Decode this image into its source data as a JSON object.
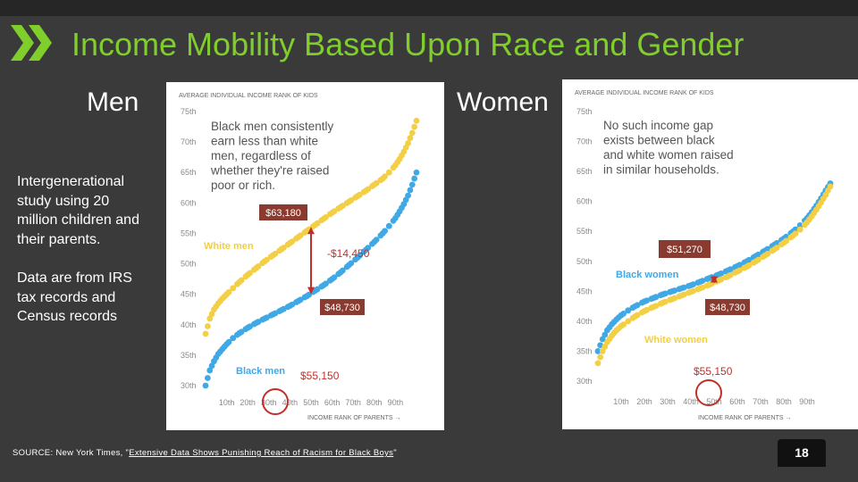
{
  "slide": {
    "title": "Income Mobility Based Upon Race and Gender",
    "men_label": "Men",
    "women_label": "Women",
    "intro_text": "Intergenerational study using 20 million children and their parents.",
    "data_text": "Data are from IRS tax records and Census records",
    "source_prefix": "SOURCE: New York Times, \"",
    "source_link": "Extensive Data Shows Punishing Reach of Racism for Black Boys",
    "source_suffix": "\"",
    "slide_number": "18"
  },
  "colors": {
    "background": "#3a3a3a",
    "title": "#7fce2c",
    "yellow_series": "#f2cf45",
    "blue_series": "#3fa9e6",
    "annotation": "#c0302a",
    "value_box": "#8a3b2f",
    "panel": "#ffffff"
  },
  "chart_data": [
    {
      "type": "scatter",
      "title": "Men",
      "y_header": "AVERAGE INDIVIDUAL INCOME RANK OF KIDS",
      "x_header": "INCOME RANK OF PARENTS →",
      "y_ticks": [
        "30th",
        "35th",
        "40th",
        "45th",
        "50th",
        "55th",
        "60th",
        "65th",
        "70th",
        "75th"
      ],
      "x_ticks": [
        "10th",
        "20th",
        "30th",
        "40th",
        "50th",
        "60th",
        "70th",
        "80th",
        "90th"
      ],
      "ylim": [
        30,
        75
      ],
      "xlim": [
        0,
        100
      ],
      "note": "Black men consistently earn less than white men, regardless of whether they're raised poor or rich.",
      "series": [
        {
          "name": "White men",
          "color": "#f2cf45",
          "points": [
            [
              0,
              38.5
            ],
            [
              2,
              41
            ],
            [
              4,
              42.5
            ],
            [
              6,
              43.5
            ],
            [
              8,
              44.3
            ],
            [
              10,
              45
            ],
            [
              13,
              46
            ],
            [
              16,
              47
            ],
            [
              20,
              48.2
            ],
            [
              24,
              49.3
            ],
            [
              28,
              50.4
            ],
            [
              32,
              51.4
            ],
            [
              36,
              52.4
            ],
            [
              40,
              53.4
            ],
            [
              44,
              54.4
            ],
            [
              48,
              55.4
            ],
            [
              52,
              56.4
            ],
            [
              56,
              57.4
            ],
            [
              60,
              58.4
            ],
            [
              64,
              59.3
            ],
            [
              68,
              60.2
            ],
            [
              72,
              61.1
            ],
            [
              76,
              62
            ],
            [
              80,
              63
            ],
            [
              84,
              64
            ],
            [
              87,
              65
            ],
            [
              90,
              66.2
            ],
            [
              92,
              67.2
            ],
            [
              94,
              68.4
            ],
            [
              96,
              69.8
            ],
            [
              98,
              71.5
            ],
            [
              100,
              73.5
            ]
          ]
        },
        {
          "name": "Black men",
          "color": "#3fa9e6",
          "points": [
            [
              0,
              30
            ],
            [
              2,
              32.5
            ],
            [
              4,
              34
            ],
            [
              6,
              35.2
            ],
            [
              8,
              36
            ],
            [
              10,
              36.8
            ],
            [
              13,
              37.8
            ],
            [
              16,
              38.6
            ],
            [
              20,
              39.5
            ],
            [
              24,
              40.3
            ],
            [
              28,
              41
            ],
            [
              32,
              41.7
            ],
            [
              36,
              42.4
            ],
            [
              40,
              43.1
            ],
            [
              44,
              43.9
            ],
            [
              48,
              44.7
            ],
            [
              52,
              45.6
            ],
            [
              56,
              46.5
            ],
            [
              60,
              47.5
            ],
            [
              64,
              48.6
            ],
            [
              68,
              49.8
            ],
            [
              72,
              51
            ],
            [
              76,
              52.3
            ],
            [
              80,
              53.6
            ],
            [
              84,
              55
            ],
            [
              87,
              56.2
            ],
            [
              90,
              57.5
            ],
            [
              92,
              58.6
            ],
            [
              94,
              59.8
            ],
            [
              96,
              61.2
            ],
            [
              98,
              63
            ],
            [
              100,
              65
            ]
          ]
        }
      ],
      "annotations": {
        "upper_value": "$63,180",
        "gap_value": "-$14,450",
        "lower_value": "$48,730",
        "circle_value": "$55,150",
        "gap_at_parent_rank": 50
      }
    },
    {
      "type": "scatter",
      "title": "Women",
      "y_header": "AVERAGE INDIVIDUAL INCOME RANK OF KIDS",
      "x_header": "INCOME RANK OF PARENTS →",
      "y_ticks": [
        "30th",
        "35th",
        "40th",
        "45th",
        "50th",
        "55th",
        "60th",
        "65th",
        "70th",
        "75th"
      ],
      "x_ticks": [
        "10th",
        "20th",
        "30th",
        "40th",
        "50th",
        "60th",
        "70th",
        "80th",
        "90th"
      ],
      "ylim": [
        30,
        75
      ],
      "xlim": [
        0,
        100
      ],
      "note": "No such income gap exists between black and white women raised in similar households.",
      "series": [
        {
          "name": "Black women",
          "color": "#3fa9e6",
          "points": [
            [
              0,
              35
            ],
            [
              2,
              37
            ],
            [
              4,
              38.5
            ],
            [
              6,
              39.5
            ],
            [
              8,
              40.3
            ],
            [
              10,
              41
            ],
            [
              13,
              41.8
            ],
            [
              16,
              42.5
            ],
            [
              20,
              43.3
            ],
            [
              24,
              43.9
            ],
            [
              28,
              44.5
            ],
            [
              32,
              45
            ],
            [
              36,
              45.5
            ],
            [
              40,
              46
            ],
            [
              44,
              46.6
            ],
            [
              48,
              47.2
            ],
            [
              52,
              47.8
            ],
            [
              56,
              48.5
            ],
            [
              60,
              49.2
            ],
            [
              64,
              50
            ],
            [
              68,
              50.9
            ],
            [
              72,
              51.8
            ],
            [
              76,
              52.8
            ],
            [
              80,
              53.8
            ],
            [
              84,
              55
            ],
            [
              87,
              56
            ],
            [
              90,
              57.2
            ],
            [
              92,
              58.2
            ],
            [
              94,
              59.3
            ],
            [
              96,
              60.5
            ],
            [
              98,
              61.8
            ],
            [
              100,
              63
            ]
          ]
        },
        {
          "name": "White women",
          "color": "#f2cf45",
          "points": [
            [
              0,
              33
            ],
            [
              2,
              35
            ],
            [
              4,
              36.5
            ],
            [
              6,
              37.6
            ],
            [
              8,
              38.5
            ],
            [
              10,
              39.2
            ],
            [
              13,
              40
            ],
            [
              16,
              40.8
            ],
            [
              20,
              41.7
            ],
            [
              24,
              42.4
            ],
            [
              28,
              43.1
            ],
            [
              32,
              43.7
            ],
            [
              36,
              44.3
            ],
            [
              40,
              44.9
            ],
            [
              44,
              45.5
            ],
            [
              48,
              46.1
            ],
            [
              52,
              46.8
            ],
            [
              56,
              47.5
            ],
            [
              60,
              48.3
            ],
            [
              64,
              49.1
            ],
            [
              68,
              50
            ],
            [
              72,
              51
            ],
            [
              76,
              52
            ],
            [
              80,
              53.1
            ],
            [
              84,
              54.3
            ],
            [
              87,
              55.3
            ],
            [
              90,
              56.5
            ],
            [
              92,
              57.5
            ],
            [
              94,
              58.6
            ],
            [
              96,
              59.8
            ],
            [
              98,
              61.1
            ],
            [
              100,
              62.5
            ]
          ]
        }
      ],
      "annotations": {
        "upper_value": "$51,270",
        "lower_value": "$48,730",
        "circle_value": "$55,150",
        "gap_at_parent_rank": 50
      }
    }
  ]
}
